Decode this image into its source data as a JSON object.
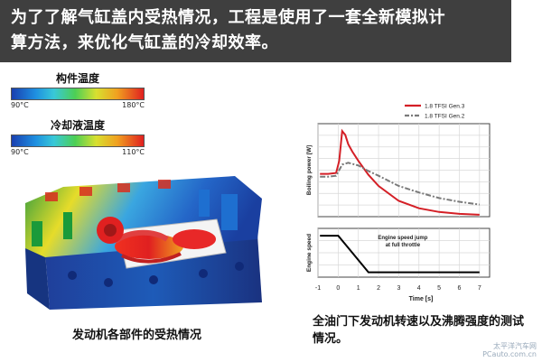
{
  "headline": {
    "line1": "为了了解气缸盖内受热情况，工程是使用了一套全新模拟计",
    "line2": "算方法，来优化气缸盖的冷却效率。"
  },
  "legends": [
    {
      "title": "构件温度",
      "min": "90°C",
      "max": "180°C"
    },
    {
      "title": "冷却液温度",
      "min": "90°C",
      "max": "110°C"
    }
  ],
  "left_caption": "发动机各部件的受热情况",
  "right_caption": "全油门下发动机转速以及沸腾强度的测试情况。",
  "watermark": {
    "line1": "太平洋汽车网",
    "line2": "PCauto.com.cn"
  },
  "chart_data": {
    "type": "line",
    "x_ticks": [
      "-1",
      "0",
      "1",
      "2",
      "3",
      "4",
      "5",
      "6",
      "7"
    ],
    "xlabel": "Time [s]",
    "panels": [
      {
        "ylabel": "Boiling power [W]",
        "series": [
          {
            "name": "1.8 TFSI Gen.3",
            "color": "#d41f26",
            "x": [
              -0.9,
              -0.5,
              -0.1,
              0.05,
              0.2,
              0.35,
              0.5,
              0.7,
              1.0,
              1.5,
              2.0,
              3.0,
              4.0,
              5.0,
              6.0,
              7.0
            ],
            "y": [
              0.46,
              0.46,
              0.47,
              0.6,
              0.92,
              0.88,
              0.78,
              0.7,
              0.6,
              0.45,
              0.33,
              0.17,
              0.09,
              0.05,
              0.03,
              0.02
            ]
          },
          {
            "name": "1.8 TFSI Gen.2",
            "color": "#7a7a7a",
            "x": [
              -0.9,
              -0.5,
              -0.1,
              0.2,
              0.5,
              1.0,
              1.5,
              2.0,
              3.0,
              4.0,
              5.0,
              6.0,
              7.0
            ],
            "y": [
              0.43,
              0.43,
              0.44,
              0.56,
              0.58,
              0.55,
              0.49,
              0.44,
              0.33,
              0.26,
              0.2,
              0.16,
              0.13
            ]
          }
        ]
      },
      {
        "ylabel": "Engine speed",
        "annotation": "Engine speed jump at full throttle",
        "series": [
          {
            "name": "",
            "color": "#000000",
            "x": [
              -0.9,
              0.0,
              1.5,
              7.0
            ],
            "y": [
              0.85,
              0.85,
              0.1,
              0.1
            ]
          }
        ]
      }
    ]
  }
}
